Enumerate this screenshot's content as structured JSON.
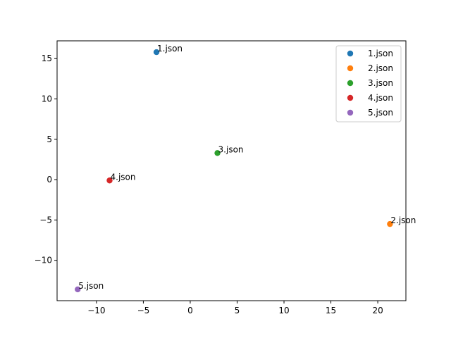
{
  "chart_data": {
    "type": "scatter",
    "title": "",
    "xlabel": "",
    "ylabel": "",
    "xlim": [
      -14.2,
      23.0
    ],
    "ylim": [
      -15.0,
      17.2
    ],
    "xticks": [
      -10,
      -5,
      0,
      5,
      10,
      15,
      20
    ],
    "yticks": [
      -10,
      -5,
      0,
      5,
      10,
      15
    ],
    "grid": false,
    "legend_position": "top-right",
    "series": [
      {
        "name": "1.json",
        "color": "#1f77b4",
        "x": [
          -3.6
        ],
        "y": [
          15.8
        ],
        "label": "1.json"
      },
      {
        "name": "2.json",
        "color": "#ff7f0e",
        "x": [
          21.3
        ],
        "y": [
          -5.5
        ],
        "label": "2.json"
      },
      {
        "name": "3.json",
        "color": "#2ca02c",
        "x": [
          2.9
        ],
        "y": [
          3.3
        ],
        "label": "3.json"
      },
      {
        "name": "4.json",
        "color": "#d62728",
        "x": [
          -8.6
        ],
        "y": [
          -0.1
        ],
        "label": "4.json"
      },
      {
        "name": "5.json",
        "color": "#9467bd",
        "x": [
          -12.0
        ],
        "y": [
          -13.6
        ],
        "label": "5.json"
      }
    ]
  }
}
